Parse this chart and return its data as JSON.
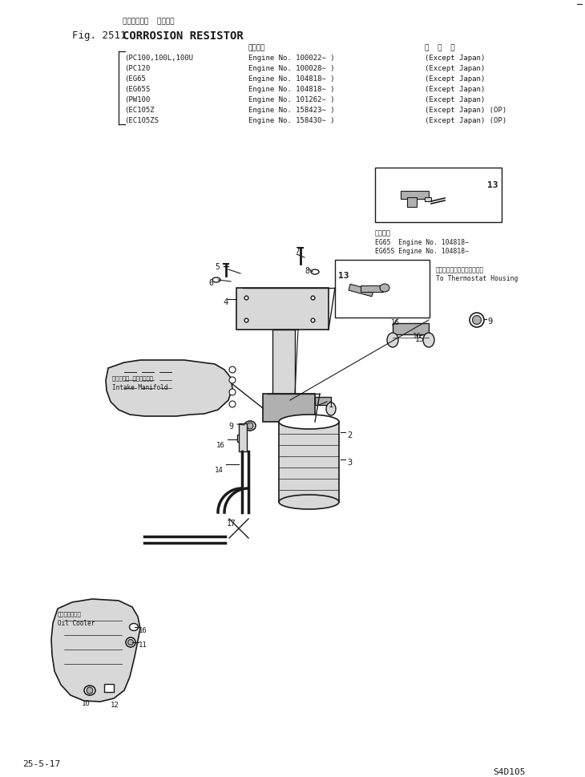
{
  "title_fig": "Fig. 2511",
  "title_jp": "コロージョン  レジスタ",
  "title_en": "CORROSION RESISTOR",
  "header_label_jp": "適用号機",
  "header_label_overseas_jp": "海  外  仕",
  "models": [
    "(PC100,100L,100U",
    "(PC120",
    "(EG65",
    "(EG65S",
    "(PW100",
    "(EC105Z",
    "(EC105ZS"
  ],
  "engine_nos": [
    "Engine No. 100022∼ )",
    "Engine No. 100028∼ )",
    "Engine No. 104818∼ )",
    "Engine No. 104818∼ )",
    "Engine No. 101262∼ )",
    "Engine No. 158423∼ )",
    "Engine No. 158430∼ )"
  ],
  "overseas": [
    "(Except Japan)",
    "(Except Japan)",
    "(Except Japan)",
    "(Except Japan)",
    "(Except Japan)",
    "(Except Japan) (OP)",
    "(Except Japan) (OP)"
  ],
  "inset_label_applicable_jp": "適用範囲",
  "inset_label1_en1": "EG65  Engine No. 104818∼",
  "inset_label1_en2": "EG65S Engine No. 104818∼",
  "inset_label2_jp": "サーモスタットハウジングへ",
  "inset_label2_en": "To Thermostat Housing",
  "intake_label_jp": "インテーク マニホールド",
  "intake_label_en": "Intake Manifold",
  "oil_cooler_label_jp": "オイルクーラー",
  "oil_cooler_label_en": "Oil Cooler",
  "page_ref": "25-5-17",
  "model_ref": "S4D105",
  "background_color": "#ffffff",
  "line_color": "#1a1a1a",
  "gray_fill": "#b0b0b0",
  "light_gray": "#d8d8d8"
}
